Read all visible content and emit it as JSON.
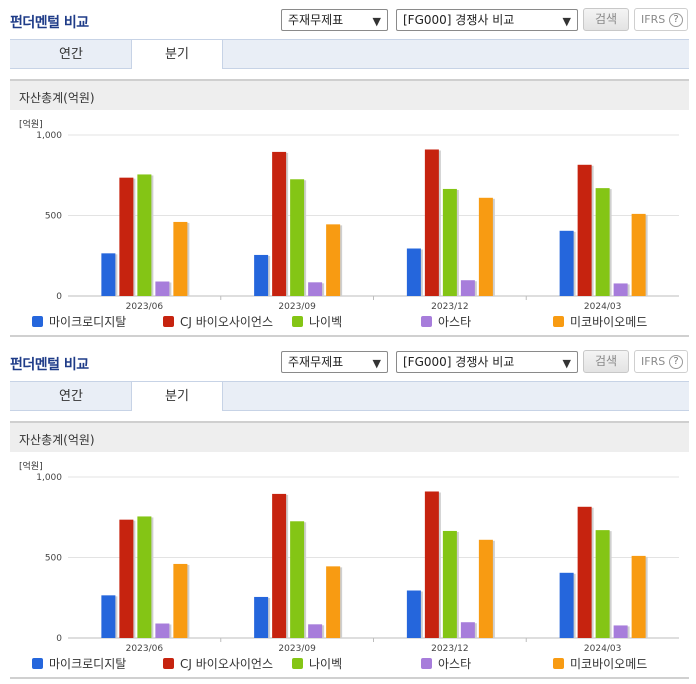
{
  "colors": {
    "series": [
      "#2566dc",
      "#c6230f",
      "#84c515",
      "#a77ddb",
      "#f89b12"
    ]
  },
  "panels": [
    {
      "title": "펀더멘털 비교",
      "select_statement": "주재무제표",
      "select_compare": "[FG000] 경쟁사 비교",
      "search_label": "검색",
      "ifrs_label": "IFRS",
      "help_glyph": "?",
      "caret": "▼",
      "tabs": [
        {
          "label": "연간"
        },
        {
          "label": "분기"
        }
      ],
      "chart_title": "자산총계(억원)",
      "unit": "[억원]"
    },
    {
      "title": "펀더멘털 비교",
      "select_statement": "주재무제표",
      "select_compare": "[FG000] 경쟁사 비교",
      "search_label": "검색",
      "ifrs_label": "IFRS",
      "help_glyph": "?",
      "caret": "▼",
      "tabs": [
        {
          "label": "연간"
        },
        {
          "label": "분기"
        }
      ],
      "chart_title": "자산총계(억원)",
      "unit": "[억원]"
    }
  ],
  "chart_data": [
    {
      "type": "bar",
      "title": "자산총계(억원)",
      "ylabel": "[억원]",
      "ylim": [
        0,
        1000
      ],
      "yticks": [
        "0",
        "500",
        "1,000"
      ],
      "ytick_values": [
        0,
        500,
        1000
      ],
      "categories": [
        "2023/06",
        "2023/09",
        "2023/12",
        "2024/03"
      ],
      "legend": "bottom",
      "series": [
        {
          "name": "마이크로디지탈",
          "values": [
            265,
            255,
            295,
            405
          ]
        },
        {
          "name": "CJ 바이오사이언스",
          "values": [
            735,
            895,
            910,
            815
          ]
        },
        {
          "name": "나이벡",
          "values": [
            755,
            725,
            665,
            670
          ]
        },
        {
          "name": "아스타",
          "values": [
            90,
            85,
            98,
            78
          ]
        },
        {
          "name": "미코바이오메드",
          "values": [
            460,
            445,
            610,
            510
          ]
        }
      ]
    },
    {
      "type": "bar",
      "title": "자산총계(억원)",
      "ylabel": "[억원]",
      "ylim": [
        0,
        1000
      ],
      "yticks": [
        "0",
        "500",
        "1,000"
      ],
      "ytick_values": [
        0,
        500,
        1000
      ],
      "categories": [
        "2023/06",
        "2023/09",
        "2023/12",
        "2024/03"
      ],
      "legend": "bottom",
      "series": [
        {
          "name": "마이크로디지탈",
          "values": [
            265,
            255,
            295,
            405
          ]
        },
        {
          "name": "CJ 바이오사이언스",
          "values": [
            735,
            895,
            910,
            815
          ]
        },
        {
          "name": "나이벡",
          "values": [
            755,
            725,
            665,
            670
          ]
        },
        {
          "name": "아스타",
          "values": [
            90,
            85,
            98,
            78
          ]
        },
        {
          "name": "미코바이오메드",
          "values": [
            460,
            445,
            610,
            510
          ]
        }
      ]
    }
  ]
}
